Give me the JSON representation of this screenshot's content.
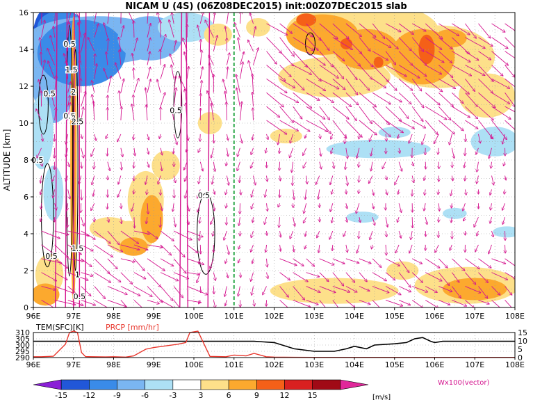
{
  "chart_data": [
    {
      "type": "heatmap",
      "title": "NICAM U (4S) (06Z08DEC2015) init:00Z07DEC2015 slab",
      "ylabel": "ALTITUDE [km]",
      "x_ticks": [
        "96E",
        "97E",
        "98E",
        "99E",
        "100E",
        "101E",
        "102E",
        "103E",
        "104E",
        "105E",
        "106E",
        "107E",
        "108E"
      ],
      "y_ticks": [
        "0",
        "2",
        "4",
        "6",
        "8",
        "10",
        "12",
        "14",
        "16"
      ],
      "xlim": [
        96,
        108
      ],
      "ylim": [
        0,
        16
      ],
      "marker_line_x": 101.0,
      "contour_labels": [
        {
          "text": "0.5",
          "lon": 96.9,
          "alt": 14.3
        },
        {
          "text": "1.5",
          "lon": 96.95,
          "alt": 12.9
        },
        {
          "text": "0.5",
          "lon": 96.4,
          "alt": 11.6
        },
        {
          "text": "2",
          "lon": 97.0,
          "alt": 11.7
        },
        {
          "text": "0.5",
          "lon": 96.9,
          "alt": 10.4
        },
        {
          "text": "2.5",
          "lon": 97.1,
          "alt": 10.1
        },
        {
          "text": "0.5",
          "lon": 96.1,
          "alt": 8.0
        },
        {
          "text": "0.5",
          "lon": 99.55,
          "alt": 10.7
        },
        {
          "text": "0.5",
          "lon": 100.25,
          "alt": 6.1
        },
        {
          "text": "1.5",
          "lon": 97.1,
          "alt": 3.2
        },
        {
          "text": "0.5",
          "lon": 96.45,
          "alt": 2.8
        },
        {
          "text": "1",
          "lon": 97.1,
          "alt": 1.8
        },
        {
          "text": "0.5",
          "lon": 97.15,
          "alt": 0.6
        }
      ],
      "blobs": [
        {
          "lon": 96.3,
          "alt": 14.0,
          "rx": 0.35,
          "ry": 2.2,
          "v": -13
        },
        {
          "lon": 96.7,
          "alt": 15.2,
          "rx": 0.6,
          "ry": 0.9,
          "v": -10
        },
        {
          "lon": 96.5,
          "alt": 12.6,
          "rx": 0.55,
          "ry": 2.6,
          "v": -7
        },
        {
          "lon": 97.6,
          "alt": 14.5,
          "rx": 1.8,
          "ry": 1.3,
          "v": -7
        },
        {
          "lon": 97.2,
          "alt": 13.8,
          "rx": 1.1,
          "ry": 1.8,
          "v": -10
        },
        {
          "lon": 98.9,
          "alt": 14.6,
          "rx": 0.8,
          "ry": 1.2,
          "v": -7
        },
        {
          "lon": 99.8,
          "alt": 15.2,
          "rx": 0.7,
          "ry": 0.8,
          "v": -4
        },
        {
          "lon": 96.2,
          "alt": 9.5,
          "rx": 0.3,
          "ry": 2.0,
          "v": -4
        },
        {
          "lon": 96.5,
          "alt": 6.2,
          "rx": 0.25,
          "ry": 1.5,
          "v": -4
        },
        {
          "lon": 104.6,
          "alt": 8.6,
          "rx": 1.3,
          "ry": 0.5,
          "v": -4
        },
        {
          "lon": 107.5,
          "alt": 9.0,
          "rx": 0.6,
          "ry": 0.8,
          "v": -4
        },
        {
          "lon": 105.0,
          "alt": 9.5,
          "rx": 0.4,
          "ry": 0.3,
          "v": -4
        },
        {
          "lon": 104.2,
          "alt": 4.9,
          "rx": 0.4,
          "ry": 0.3,
          "v": -4
        },
        {
          "lon": 106.5,
          "alt": 5.1,
          "rx": 0.3,
          "ry": 0.3,
          "v": -4
        },
        {
          "lon": 107.8,
          "alt": 4.1,
          "rx": 0.35,
          "ry": 0.3,
          "v": -4
        },
        {
          "lon": 104.2,
          "alt": 15.0,
          "rx": 1.9,
          "ry": 1.6,
          "v": 4.5
        },
        {
          "lon": 103.5,
          "alt": 12.5,
          "rx": 1.4,
          "ry": 1.1,
          "v": 4.5
        },
        {
          "lon": 106.1,
          "alt": 13.6,
          "rx": 1.4,
          "ry": 1.7,
          "v": 4.5
        },
        {
          "lon": 107.3,
          "alt": 11.5,
          "rx": 0.7,
          "ry": 1.2,
          "v": 4.5
        },
        {
          "lon": 103.2,
          "alt": 14.8,
          "rx": 0.9,
          "ry": 1.1,
          "v": 7
        },
        {
          "lon": 104.3,
          "alt": 14.0,
          "rx": 0.8,
          "ry": 1.1,
          "v": 7
        },
        {
          "lon": 105.7,
          "alt": 13.6,
          "rx": 0.8,
          "ry": 1.5,
          "v": 7
        },
        {
          "lon": 106.4,
          "alt": 14.6,
          "rx": 0.4,
          "ry": 0.5,
          "v": 7
        },
        {
          "lon": 102.8,
          "alt": 15.6,
          "rx": 0.25,
          "ry": 0.35,
          "v": 10
        },
        {
          "lon": 103.8,
          "alt": 14.3,
          "rx": 0.15,
          "ry": 0.3,
          "v": 10
        },
        {
          "lon": 105.8,
          "alt": 14.0,
          "rx": 0.2,
          "ry": 0.8,
          "v": 10
        },
        {
          "lon": 104.6,
          "alt": 13.3,
          "rx": 0.12,
          "ry": 0.3,
          "v": 10
        },
        {
          "lon": 100.6,
          "alt": 14.8,
          "rx": 0.35,
          "ry": 0.6,
          "v": 4.5
        },
        {
          "lon": 98.8,
          "alt": 5.8,
          "rx": 0.45,
          "ry": 1.6,
          "v": 4.5
        },
        {
          "lon": 98.4,
          "alt": 3.8,
          "rx": 0.6,
          "ry": 0.9,
          "v": 4.5
        },
        {
          "lon": 97.9,
          "alt": 4.3,
          "rx": 0.5,
          "ry": 0.6,
          "v": 4.5
        },
        {
          "lon": 98.95,
          "alt": 4.8,
          "rx": 0.28,
          "ry": 1.3,
          "v": 7
        },
        {
          "lon": 98.5,
          "alt": 3.3,
          "rx": 0.35,
          "ry": 0.5,
          "v": 7
        },
        {
          "lon": 96.4,
          "alt": 1.8,
          "rx": 0.35,
          "ry": 1.1,
          "v": 4.5
        },
        {
          "lon": 96.3,
          "alt": 0.7,
          "rx": 0.35,
          "ry": 0.6,
          "v": 7
        },
        {
          "lon": 99.3,
          "alt": 7.7,
          "rx": 0.35,
          "ry": 0.8,
          "v": 4.5
        },
        {
          "lon": 101.6,
          "alt": 15.2,
          "rx": 0.3,
          "ry": 0.5,
          "v": 4.5
        },
        {
          "lon": 100.4,
          "alt": 10.0,
          "rx": 0.3,
          "ry": 0.6,
          "v": 4.5
        },
        {
          "lon": 102.3,
          "alt": 9.3,
          "rx": 0.4,
          "ry": 0.4,
          "v": 4.5
        },
        {
          "lon": 103.5,
          "alt": 0.9,
          "rx": 1.6,
          "ry": 0.7,
          "v": 4.5
        },
        {
          "lon": 106.8,
          "alt": 1.2,
          "rx": 1.3,
          "ry": 1.0,
          "v": 4.5
        },
        {
          "lon": 107.0,
          "alt": 1.0,
          "rx": 0.8,
          "ry": 0.6,
          "v": 7
        },
        {
          "lon": 105.2,
          "alt": 2.0,
          "rx": 0.4,
          "ry": 0.5,
          "v": 4.5
        },
        {
          "lon": 97.0,
          "alt": 8.0,
          "rx": 0.08,
          "ry": 7.8,
          "v": 7
        }
      ],
      "contours": [
        {
          "lon": 99.6,
          "alt": 11.0,
          "rx": 0.1,
          "ry": 1.8
        },
        {
          "lon": 100.3,
          "alt": 4.0,
          "rx": 0.22,
          "ry": 2.2
        },
        {
          "lon": 102.9,
          "alt": 14.3,
          "rx": 0.12,
          "ry": 0.6
        },
        {
          "lon": 96.25,
          "alt": 11.0,
          "rx": 0.12,
          "ry": 1.6
        },
        {
          "lon": 96.35,
          "alt": 5.0,
          "rx": 0.15,
          "ry": 2.8
        },
        {
          "lon": 96.9,
          "alt": 8.5,
          "rx": 0.08,
          "ry": 6.8
        },
        {
          "lon": 97.05,
          "alt": 8.0,
          "rx": 0.06,
          "ry": 6.0
        }
      ],
      "wind_line_lons": [
        96.55,
        96.8,
        97.0,
        97.15,
        97.3,
        99.65,
        99.85,
        100.35
      ]
    },
    {
      "type": "line",
      "legend": [
        "TEM(SFC)[K]",
        "PRCP [mm/hr]"
      ],
      "x_ticks": [
        "96E",
        "97E",
        "98E",
        "99E",
        "100E",
        "101E",
        "102E",
        "103E",
        "104E",
        "105E",
        "106E",
        "107E",
        "108E"
      ],
      "left_ticks": [
        "310",
        "305",
        "300",
        "295",
        "290"
      ],
      "right_ticks": [
        "15",
        "10",
        "5",
        "0"
      ],
      "xlim": [
        96,
        108
      ],
      "series": [
        {
          "name": "TEM(SFC)[K]",
          "color": "#000000",
          "ylim": [
            290,
            310
          ],
          "x": [
            96.0,
            96.5,
            97.0,
            97.5,
            98.0,
            99.0,
            99.5,
            100.0,
            100.5,
            101.0,
            101.5,
            102.0,
            102.5,
            103.0,
            103.5,
            103.8,
            104.0,
            104.3,
            104.5,
            105.0,
            105.3,
            105.5,
            105.7,
            105.9,
            106.0,
            106.2,
            106.5,
            107.0,
            107.5,
            108.0
          ],
          "y": [
            303,
            303,
            303,
            303,
            303,
            303,
            303,
            303,
            303,
            303,
            303,
            302,
            297,
            295,
            295,
            297,
            299,
            297,
            300,
            301,
            302,
            305,
            306,
            303,
            302,
            303,
            303,
            303,
            303,
            303
          ]
        },
        {
          "name": "PRCP [mm/hr]",
          "color": "#e8352b",
          "ylim": [
            0,
            15
          ],
          "x": [
            96.0,
            96.2,
            96.5,
            96.8,
            96.9,
            97.0,
            97.1,
            97.2,
            97.3,
            97.5,
            97.8,
            98.0,
            98.3,
            98.5,
            98.8,
            99.0,
            99.3,
            99.6,
            99.8,
            99.9,
            100.1,
            100.4,
            100.8,
            101.0,
            101.3,
            101.5,
            101.8,
            102.0,
            102.5,
            103.0,
            104.0,
            105.0,
            106.0,
            107.0,
            108.0
          ],
          "y": [
            0.5,
            0.5,
            0.8,
            8,
            15,
            17,
            15,
            3,
            0.6,
            0.5,
            0.4,
            0.5,
            0.3,
            1,
            5,
            6,
            7,
            8,
            9,
            15,
            16,
            0.7,
            0.5,
            1.5,
            1,
            2.5,
            0.5,
            0.3,
            0.2,
            0.1,
            0.1,
            0.1,
            0.1,
            0.1,
            0.1
          ]
        }
      ]
    },
    {
      "type": "colorbar",
      "ticks": [
        "-15",
        "-12",
        "-9",
        "-6",
        "-3",
        "3",
        "6",
        "9",
        "12",
        "15"
      ],
      "unit": "[m/s]",
      "colors": [
        "#8a1fd6",
        "#2157d8",
        "#3a8be8",
        "#7ab6f2",
        "#ade0f5",
        "#ffffff",
        "#fde08a",
        "#fca92e",
        "#f56018",
        "#d92020",
        "#a00a16",
        "#e0289a"
      ],
      "vector_note": "Wx100(vector)",
      "vector_color": "#d4138e"
    }
  ]
}
